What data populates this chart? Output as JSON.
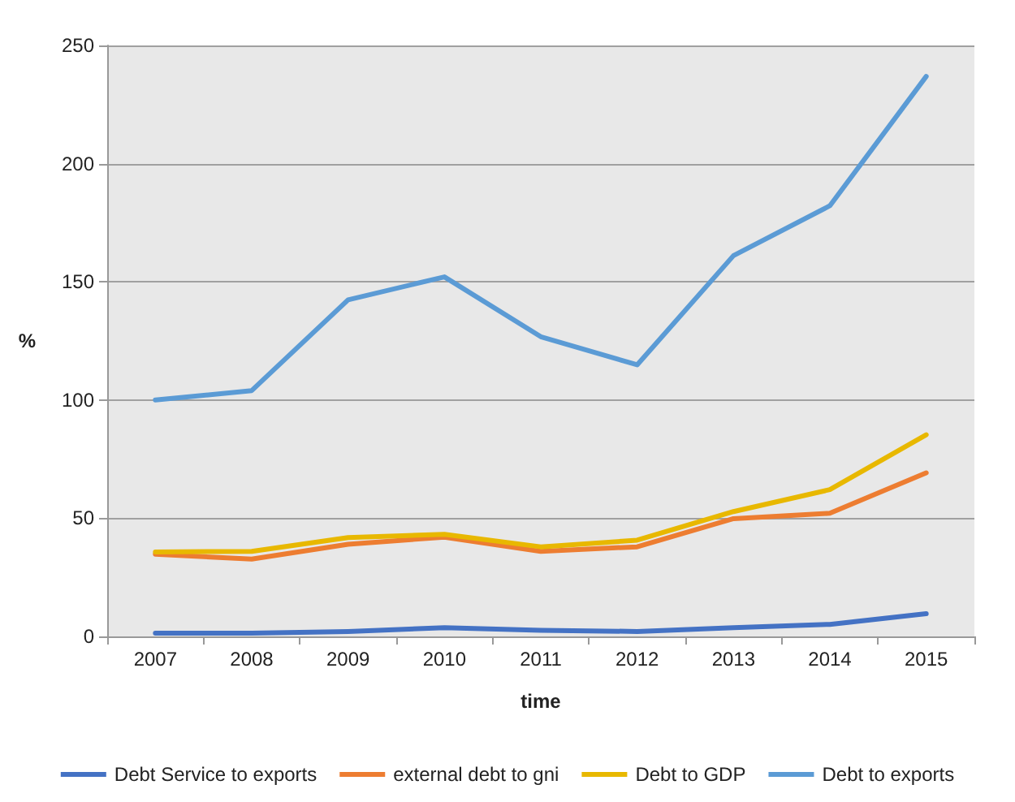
{
  "chart_data": {
    "type": "line",
    "xlabel": "time",
    "ylabel": "%",
    "categories": [
      "2007",
      "2008",
      "2009",
      "2010",
      "2011",
      "2012",
      "2013",
      "2014",
      "2015"
    ],
    "series": [
      {
        "name": "Debt Service to exports",
        "color": "#4472c4",
        "values": [
          1.4,
          1.4,
          2.1,
          3.7,
          2.6,
          2.1,
          3.7,
          5.1,
          9.6
        ]
      },
      {
        "name": "external debt to gni",
        "color": "#ed7d31",
        "values": [
          34.8,
          32.7,
          39,
          42,
          36,
          37.9,
          49.8,
          52.1,
          69.2
        ]
      },
      {
        "name": "Debt to GDP",
        "color": "#e8b800",
        "values": [
          35.7,
          36,
          41.8,
          43.2,
          37.9,
          40.7,
          52.8,
          62.1,
          85.3
        ]
      },
      {
        "name": "Debt to exports",
        "color": "#5b9bd5",
        "values": [
          100,
          104,
          142.4,
          152.1,
          126.8,
          114.9,
          161.1,
          182.2,
          236.9
        ]
      }
    ],
    "ylim": [
      0,
      250
    ],
    "yticks": [
      0,
      50,
      100,
      150,
      200,
      250
    ],
    "grid": "y",
    "legend": "bottom",
    "marker": "none",
    "line_style": "solid"
  }
}
